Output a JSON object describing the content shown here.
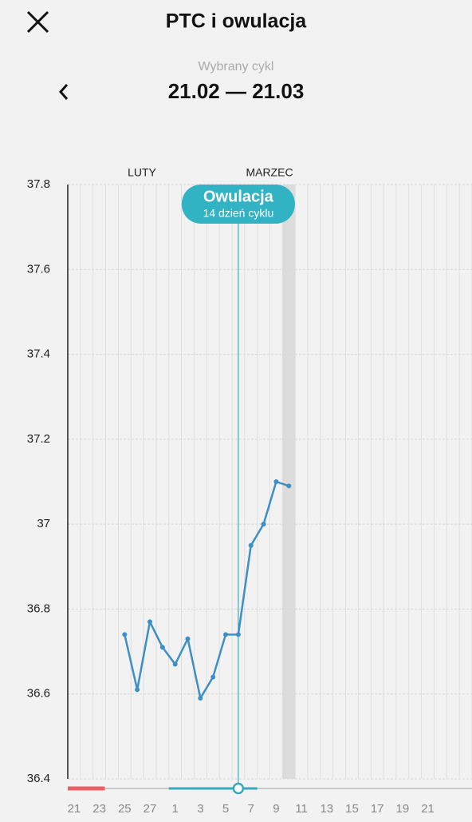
{
  "header": {
    "title": "PTC i owulacja",
    "subtitle": "Wybrany cykl",
    "period": "21.02 — 21.03"
  },
  "chart_data": {
    "type": "line",
    "months": [
      "LUTY",
      "MARZEC"
    ],
    "annotation": {
      "label": "Owulacja",
      "sublabel": "14 dzień cyklu"
    },
    "categories": [
      "21",
      null,
      "23",
      null,
      "25",
      null,
      "27",
      null,
      "1",
      null,
      "3",
      null,
      "5",
      null,
      "7",
      null,
      "9",
      null,
      "11",
      null,
      "13",
      null,
      "15",
      null,
      "17",
      null,
      "19",
      null,
      "21",
      null,
      null,
      null
    ],
    "values": [
      null,
      null,
      null,
      null,
      36.74,
      36.61,
      36.77,
      36.71,
      36.67,
      36.73,
      36.59,
      36.64,
      36.74,
      36.74,
      36.95,
      37.0,
      37.1,
      37.09,
      null,
      null,
      null,
      null,
      null,
      null,
      null,
      null,
      null,
      null,
      null,
      null,
      null,
      null
    ],
    "color": "#3d8fc4",
    "ylim": [
      36.4,
      37.8
    ],
    "yticks": [
      36.4,
      36.6,
      36.8,
      37,
      37.2,
      37.4,
      37.6,
      37.8
    ],
    "grid": true
  }
}
